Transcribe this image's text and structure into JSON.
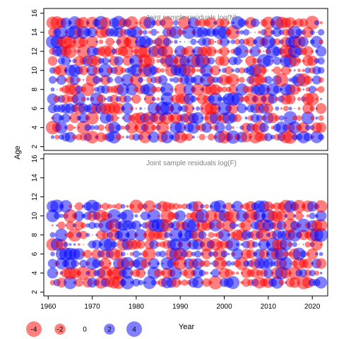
{
  "colors": {
    "positive": "#0000ff",
    "negative": "#ff0000",
    "opacity": 0.5,
    "axis": "#000000",
    "title": "#808080"
  },
  "axis_labels": {
    "x": "Year",
    "y": "Age"
  },
  "chart_data": [
    {
      "type": "scatter",
      "title": "Joint sample residuals log(N)",
      "xlabel": "Year",
      "ylabel": "Age",
      "xlim": [
        1959,
        2023.5
      ],
      "ylim": [
        1.6,
        16.5
      ],
      "x_ticks": [],
      "y_ticks": [
        "2",
        "4",
        "6",
        "8",
        "10",
        "12",
        "14",
        "16"
      ],
      "years": [
        1961,
        2022
      ],
      "ages": [
        3,
        15
      ],
      "encoding": "bubble area proportional to |residual|; blue = positive, red = negative",
      "residual_range": [
        -4,
        4
      ]
    },
    {
      "type": "scatter",
      "title": "Joint sample residuals log(F)",
      "xlabel": "Year",
      "ylabel": "Age",
      "xlim": [
        1959,
        2023.5
      ],
      "ylim": [
        1.6,
        16.5
      ],
      "x_ticks": [
        "1960",
        "1970",
        "1980",
        "1990",
        "2000",
        "2010",
        "2020"
      ],
      "y_ticks": [
        "2",
        "4",
        "6",
        "8",
        "10",
        "12",
        "14",
        "16"
      ],
      "years": [
        1961,
        2022
      ],
      "ages": [
        3,
        11
      ],
      "encoding": "bubble area proportional to |residual|; blue = positive, red = negative",
      "residual_range": [
        -4,
        4
      ]
    }
  ],
  "legend": {
    "items": [
      {
        "label": "-4",
        "value": -4
      },
      {
        "label": "-2",
        "value": -2
      },
      {
        "label": "0",
        "value": 0
      },
      {
        "label": "2",
        "value": 2
      },
      {
        "label": "4",
        "value": 4
      }
    ]
  }
}
